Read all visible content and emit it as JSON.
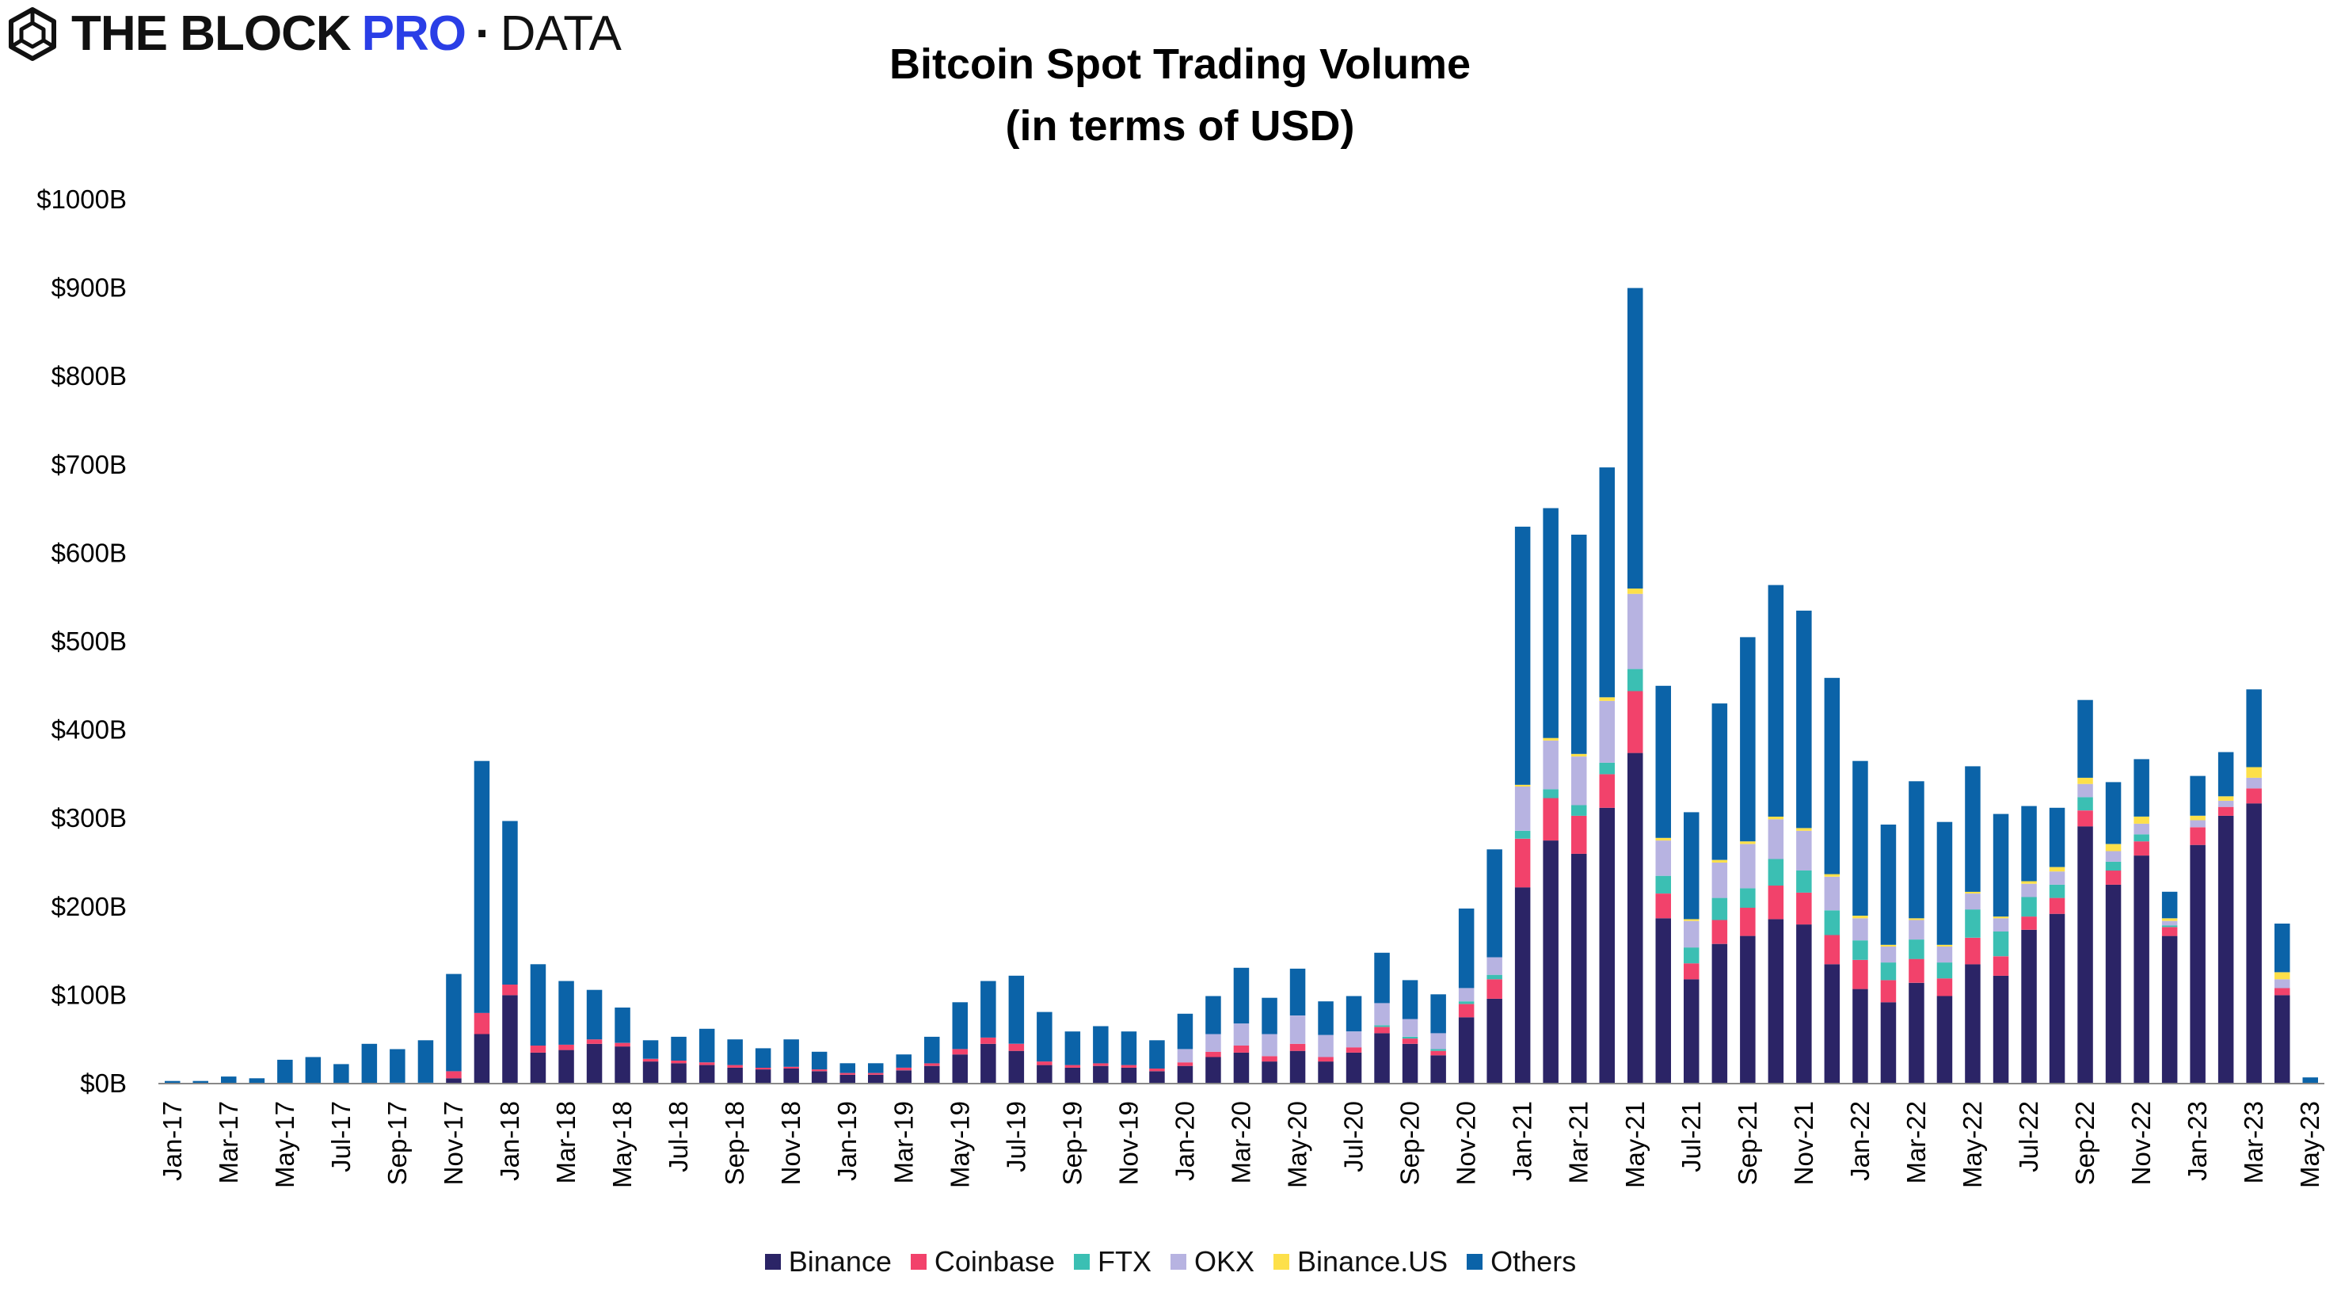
{
  "brand": {
    "main": "THE BLOCK",
    "pro": "PRO",
    "dot": "·",
    "data": "DATA",
    "pro_color": "#2a3ee6"
  },
  "chart_data": {
    "type": "bar",
    "stacked": true,
    "title": "Bitcoin Spot Trading Volume",
    "subtitle": "(in terms of USD)",
    "xlabel": "",
    "ylabel": "",
    "unit": "$B",
    "ylim": [
      0,
      1000
    ],
    "yticks": [
      "$0B",
      "$100B",
      "$200B",
      "$300B",
      "$400B",
      "$500B",
      "$600B",
      "$700B",
      "$800B",
      "$900B",
      "$1000B"
    ],
    "grid": false,
    "legend_position": "bottom",
    "xtick_labels": [
      "Jan-17",
      "Mar-17",
      "May-17",
      "Jul-17",
      "Sep-17",
      "Nov-17",
      "Jan-18",
      "Mar-18",
      "May-18",
      "Jul-18",
      "Sep-18",
      "Nov-18",
      "Jan-19",
      "Mar-19",
      "May-19",
      "Jul-19",
      "Sep-19",
      "Nov-19",
      "Jan-20",
      "Mar-20",
      "May-20",
      "Jul-20",
      "Sep-20",
      "Nov-20",
      "Jan-21",
      "Mar-21",
      "May-21",
      "Jul-21",
      "Sep-21",
      "Nov-21",
      "Jan-22",
      "Mar-22",
      "May-22",
      "Jul-22",
      "Sep-22",
      "Nov-22",
      "Jan-23",
      "Mar-23",
      "May-23"
    ],
    "categories": [
      "Jan-17",
      "Feb-17",
      "Mar-17",
      "Apr-17",
      "May-17",
      "Jun-17",
      "Jul-17",
      "Aug-17",
      "Sep-17",
      "Oct-17",
      "Nov-17",
      "Dec-17",
      "Jan-18",
      "Feb-18",
      "Mar-18",
      "Apr-18",
      "May-18",
      "Jun-18",
      "Jul-18",
      "Aug-18",
      "Sep-18",
      "Oct-18",
      "Nov-18",
      "Dec-18",
      "Jan-19",
      "Feb-19",
      "Mar-19",
      "Apr-19",
      "May-19",
      "Jun-19",
      "Jul-19",
      "Aug-19",
      "Sep-19",
      "Oct-19",
      "Nov-19",
      "Dec-19",
      "Jan-20",
      "Feb-20",
      "Mar-20",
      "Apr-20",
      "May-20",
      "Jun-20",
      "Jul-20",
      "Aug-20",
      "Sep-20",
      "Oct-20",
      "Nov-20",
      "Dec-20",
      "Jan-21",
      "Feb-21",
      "Mar-21",
      "Apr-21",
      "May-21",
      "Jun-21",
      "Jul-21",
      "Aug-21",
      "Sep-21",
      "Oct-21",
      "Nov-21",
      "Dec-21",
      "Jan-22",
      "Feb-22",
      "Mar-22",
      "Apr-22",
      "May-22",
      "Jun-22",
      "Jul-22",
      "Aug-22",
      "Sep-22",
      "Oct-22",
      "Nov-22",
      "Dec-22",
      "Jan-23",
      "Feb-23",
      "Mar-23",
      "Apr-23",
      "May-23"
    ],
    "series": [
      {
        "name": "Binance",
        "color": "#2b2466",
        "values": [
          0,
          0,
          0,
          0,
          0,
          0,
          0,
          0,
          1,
          1,
          6,
          56,
          100,
          35,
          38,
          45,
          42,
          25,
          23,
          21,
          18,
          16,
          17,
          14,
          10,
          10,
          15,
          20,
          33,
          45,
          37,
          21,
          18,
          20,
          18,
          14,
          20,
          30,
          35,
          25,
          37,
          25,
          35,
          57,
          45,
          32,
          75,
          96,
          222,
          275,
          260,
          312,
          374,
          187,
          118,
          158,
          167,
          186,
          180,
          135,
          107,
          92,
          114,
          99,
          135,
          122,
          174,
          192,
          291,
          225,
          258,
          167,
          270,
          303,
          317,
          100,
          0
        ]
      },
      {
        "name": "Coinbase",
        "color": "#f2426b",
        "values": [
          0,
          0,
          0,
          0,
          0,
          0,
          0,
          0,
          0,
          0,
          8,
          24,
          12,
          8,
          6,
          5,
          4,
          3,
          3,
          3,
          3,
          2,
          2,
          2,
          2,
          2,
          3,
          3,
          6,
          7,
          8,
          4,
          3,
          3,
          3,
          3,
          4,
          6,
          8,
          6,
          8,
          5,
          6,
          7,
          6,
          5,
          15,
          22,
          55,
          48,
          43,
          38,
          70,
          28,
          18,
          27,
          32,
          38,
          36,
          33,
          33,
          25,
          27,
          20,
          30,
          22,
          15,
          18,
          18,
          16,
          16,
          10,
          20,
          10,
          17,
          8,
          0
        ]
      },
      {
        "name": "FTX",
        "color": "#3bbfb3",
        "values": [
          0,
          0,
          0,
          0,
          0,
          0,
          0,
          0,
          0,
          0,
          0,
          0,
          0,
          0,
          0,
          0,
          0,
          0,
          0,
          0,
          0,
          0,
          0,
          0,
          0,
          0,
          0,
          0,
          0,
          0,
          0,
          0,
          0,
          0,
          0,
          0,
          0,
          0,
          0,
          0,
          0,
          0,
          0,
          2,
          2,
          2,
          3,
          5,
          9,
          10,
          12,
          13,
          25,
          20,
          18,
          25,
          22,
          30,
          25,
          28,
          22,
          20,
          22,
          18,
          32,
          28,
          22,
          15,
          15,
          10,
          8,
          2,
          0,
          0,
          0,
          0,
          0
        ]
      },
      {
        "name": "OKX",
        "color": "#b7b3e1",
        "values": [
          0,
          0,
          0,
          0,
          0,
          0,
          0,
          0,
          0,
          0,
          0,
          0,
          0,
          0,
          0,
          0,
          0,
          0,
          0,
          0,
          0,
          0,
          0,
          0,
          0,
          0,
          0,
          0,
          0,
          0,
          0,
          0,
          0,
          0,
          0,
          0,
          15,
          20,
          25,
          25,
          32,
          25,
          18,
          25,
          20,
          18,
          15,
          20,
          50,
          55,
          55,
          70,
          85,
          40,
          30,
          40,
          50,
          45,
          45,
          38,
          25,
          18,
          22,
          18,
          18,
          15,
          15,
          15,
          15,
          12,
          12,
          5,
          8,
          7,
          12,
          10,
          0
        ]
      },
      {
        "name": "Binance.US",
        "color": "#fde04a",
        "values": [
          0,
          0,
          0,
          0,
          0,
          0,
          0,
          0,
          0,
          0,
          0,
          0,
          0,
          0,
          0,
          0,
          0,
          0,
          0,
          0,
          0,
          0,
          0,
          0,
          0,
          0,
          0,
          0,
          0,
          0,
          0,
          0,
          0,
          0,
          0,
          0,
          0,
          0,
          0,
          0,
          0,
          0,
          0,
          0,
          0,
          0,
          0,
          0,
          2,
          3,
          3,
          4,
          6,
          3,
          2,
          3,
          3,
          3,
          3,
          3,
          3,
          2,
          2,
          2,
          2,
          2,
          3,
          5,
          7,
          8,
          8,
          3,
          5,
          5,
          12,
          8,
          0
        ]
      },
      {
        "name": "Others",
        "color": "#0b63a8",
        "values": [
          3,
          3,
          8,
          6,
          27,
          30,
          22,
          45,
          38,
          48,
          110,
          285,
          185,
          92,
          72,
          56,
          40,
          21,
          27,
          38,
          29,
          22,
          31,
          20,
          11,
          11,
          15,
          30,
          53,
          64,
          77,
          56,
          38,
          42,
          38,
          32,
          40,
          43,
          63,
          41,
          53,
          38,
          40,
          57,
          44,
          44,
          90,
          122,
          292,
          260,
          248,
          260,
          340,
          172,
          121,
          177,
          231,
          262,
          246,
          222,
          175,
          136,
          155,
          139,
          142,
          116,
          85,
          67,
          88,
          70,
          65,
          30,
          45,
          50,
          88,
          55,
          7
        ]
      }
    ]
  }
}
